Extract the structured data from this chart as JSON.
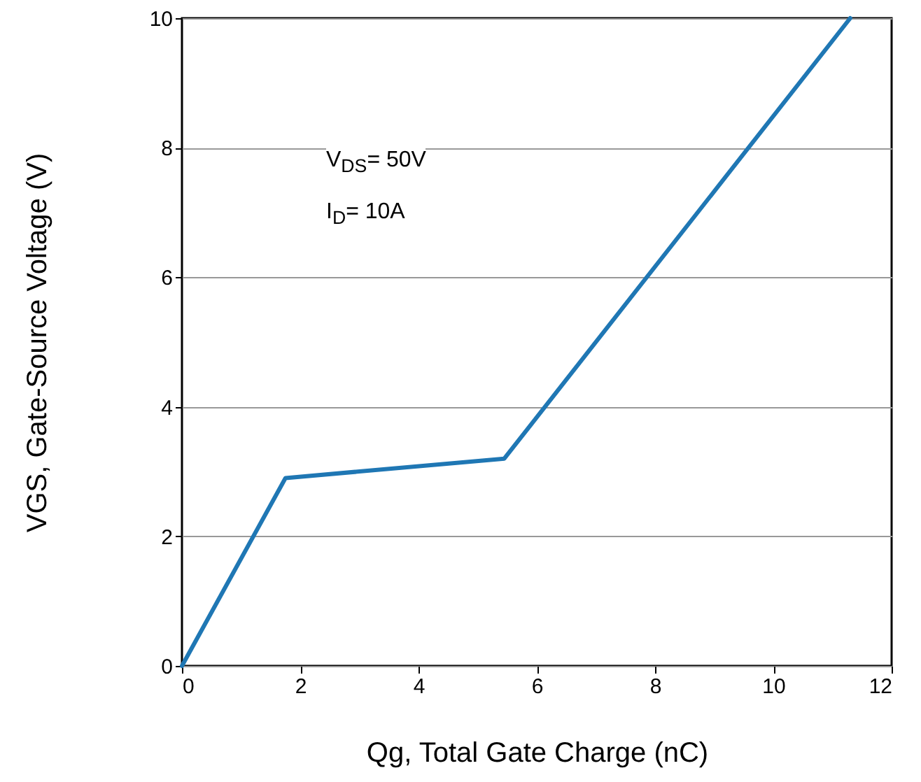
{
  "chart_data": {
    "type": "line",
    "xlabel": "Qg, Total Gate Charge (nC)",
    "ylabel": "VGS, Gate-Source Voltage (V)",
    "x": [
      0,
      1.75,
      5.45,
      11.3
    ],
    "series": [
      {
        "color": "#1f77b4",
        "values": [
          0,
          2.9,
          3.2,
          10
        ]
      }
    ],
    "xlim": [
      0,
      12
    ],
    "xticks": [
      0,
      2,
      4,
      6,
      8,
      10,
      12
    ],
    "ylim": [
      0,
      10
    ],
    "yticks": [
      0,
      2,
      4,
      6,
      8,
      10
    ],
    "grid": "y",
    "marker": "none",
    "line_style": "solid",
    "annotations": [
      "V$_{DS}$= 50V",
      "I$_{D}$= 10A"
    ]
  }
}
